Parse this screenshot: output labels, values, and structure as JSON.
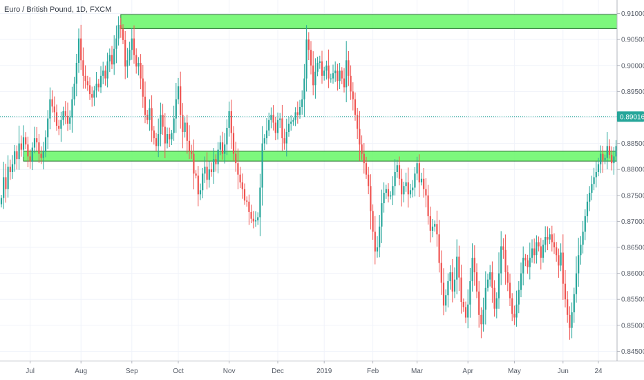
{
  "title": "Euro / British Pound, 1D, FXCM",
  "colors": {
    "up": "#26a69a",
    "down": "#ef5350",
    "zone_fill": "#66f766",
    "zone_stroke": "#21702a",
    "current_line": "#26a69a",
    "price_tag_bg": "#26a69a",
    "grid": "#f0f3fa",
    "axis_text": "#555b66",
    "axis_line": "#b2b5be"
  },
  "chart_data": {
    "type": "candlestick",
    "title": "Euro / British Pound, 1D, FXCM",
    "ylim": [
      0.8432,
      0.9126
    ],
    "grid": true,
    "y_ticks": [
      "0.91000",
      "0.90500",
      "0.90000",
      "0.89500",
      "0.89000",
      "0.88500",
      "0.88000",
      "0.87500",
      "0.87000",
      "0.86500",
      "0.86000",
      "0.85500",
      "0.85000",
      "0.84500"
    ],
    "x_ticks": [
      {
        "label": "Jul",
        "bar": 13
      },
      {
        "label": "Aug",
        "bar": 36
      },
      {
        "label": "Sep",
        "bar": 59
      },
      {
        "label": "Oct",
        "bar": 80
      },
      {
        "label": "Nov",
        "bar": 103
      },
      {
        "label": "Dec",
        "bar": 125
      },
      {
        "label": "2019",
        "bar": 146
      },
      {
        "label": "Feb",
        "bar": 168
      },
      {
        "label": "Mar",
        "bar": 188
      },
      {
        "label": "Apr",
        "bar": 211
      },
      {
        "label": "May",
        "bar": 232
      },
      {
        "label": "Jun",
        "bar": 254
      },
      {
        "label": "24",
        "bar": 270
      }
    ],
    "current_price": 0.89016,
    "current_price_label": "0.89016",
    "zones": [
      {
        "name": "resistance-zone",
        "from": 0.9071,
        "to": 0.9098,
        "start_bar": 54
      },
      {
        "name": "support-zone",
        "from": 0.8816,
        "to": 0.8835,
        "start_bar": 10
      }
    ],
    "closes": [
      0.8745,
      0.8785,
      0.8762,
      0.8805,
      0.8795,
      0.881,
      0.8835,
      0.882,
      0.885,
      0.8838,
      0.8862,
      0.8848,
      0.8825,
      0.8815,
      0.8842,
      0.886,
      0.8852,
      0.883,
      0.8822,
      0.8835,
      0.8862,
      0.8898,
      0.8935,
      0.8921,
      0.891,
      0.8884,
      0.8878,
      0.8895,
      0.8912,
      0.8903,
      0.8888,
      0.89,
      0.8935,
      0.8965,
      0.9005,
      0.9052,
      0.901,
      0.898,
      0.897,
      0.8962,
      0.8945,
      0.8938,
      0.8952,
      0.8965,
      0.8958,
      0.898,
      0.899,
      0.8975,
      0.9008,
      0.902,
      0.9002,
      0.9032,
      0.9052,
      0.9078,
      0.907,
      0.9049,
      0.8998,
      0.901,
      0.903,
      0.9052,
      0.902,
      0.8998,
      0.9005,
      0.8975,
      0.894,
      0.8905,
      0.8895,
      0.8918,
      0.8875,
      0.886,
      0.8845,
      0.8868,
      0.8905,
      0.8882,
      0.885,
      0.8868,
      0.8858,
      0.887,
      0.8898,
      0.8935,
      0.896,
      0.8905,
      0.8872,
      0.889,
      0.8855,
      0.8835,
      0.883,
      0.8792,
      0.8788,
      0.8752,
      0.876,
      0.8792,
      0.8805,
      0.878,
      0.88,
      0.8795,
      0.882,
      0.881,
      0.8838,
      0.8852,
      0.883,
      0.8848,
      0.888,
      0.8912,
      0.887,
      0.883,
      0.8812,
      0.879,
      0.8775,
      0.8762,
      0.874,
      0.8738,
      0.8718,
      0.8705,
      0.87,
      0.8702,
      0.8708,
      0.8765,
      0.885,
      0.886,
      0.8875,
      0.8895,
      0.8905,
      0.889,
      0.887,
      0.8895,
      0.8898,
      0.886,
      0.885,
      0.8872,
      0.8888,
      0.8892,
      0.8895,
      0.891,
      0.8905,
      0.892,
      0.8935,
      0.8975,
      0.905,
      0.903,
      0.9,
      0.8962,
      0.8988,
      0.9005,
      0.9008,
      0.898,
      0.899,
      0.9,
      0.8975,
      0.8975,
      0.8985,
      0.899,
      0.897,
      0.899,
      0.8975,
      0.8958,
      0.901,
      0.898,
      0.895,
      0.8935,
      0.8905,
      0.8878,
      0.8848,
      0.883,
      0.8812,
      0.879,
      0.8768,
      0.872,
      0.868,
      0.8642,
      0.865,
      0.869,
      0.8735,
      0.8755,
      0.8762,
      0.8748,
      0.875,
      0.8768,
      0.8795,
      0.8808,
      0.8782,
      0.8752,
      0.8768,
      0.8775,
      0.8752,
      0.876,
      0.8765,
      0.8792,
      0.8812,
      0.8775,
      0.8782,
      0.8762,
      0.875,
      0.871,
      0.8682,
      0.869,
      0.8695,
      0.8675,
      0.862,
      0.8582,
      0.8538,
      0.8558,
      0.8585,
      0.8602,
      0.8565,
      0.8588,
      0.8632,
      0.8592,
      0.8545,
      0.8535,
      0.8515,
      0.854,
      0.8585,
      0.863,
      0.8602,
      0.8565,
      0.852,
      0.8502,
      0.853,
      0.8572,
      0.8588,
      0.8602,
      0.8572,
      0.8532,
      0.8552,
      0.86,
      0.8652,
      0.8645,
      0.8602,
      0.8582,
      0.8552,
      0.8522,
      0.8515,
      0.854,
      0.8568,
      0.86,
      0.863,
      0.8625,
      0.8612,
      0.863,
      0.8648,
      0.8635,
      0.866,
      0.8652,
      0.863,
      0.8655,
      0.867,
      0.8665,
      0.8675,
      0.866,
      0.865,
      0.8635,
      0.8615,
      0.864,
      0.858,
      0.855,
      0.852,
      0.8495,
      0.8525,
      0.856,
      0.86,
      0.8635,
      0.8655,
      0.868,
      0.871,
      0.8738,
      0.8755,
      0.8772,
      0.8785,
      0.8795,
      0.881,
      0.883,
      0.8818,
      0.8822,
      0.8845,
      0.8828,
      0.8812,
      0.8825,
      0.8845,
      0.8865,
      0.8882,
      0.8875,
      0.887,
      0.8895,
      0.891,
      0.8915,
      0.8895,
      0.8902
    ]
  }
}
